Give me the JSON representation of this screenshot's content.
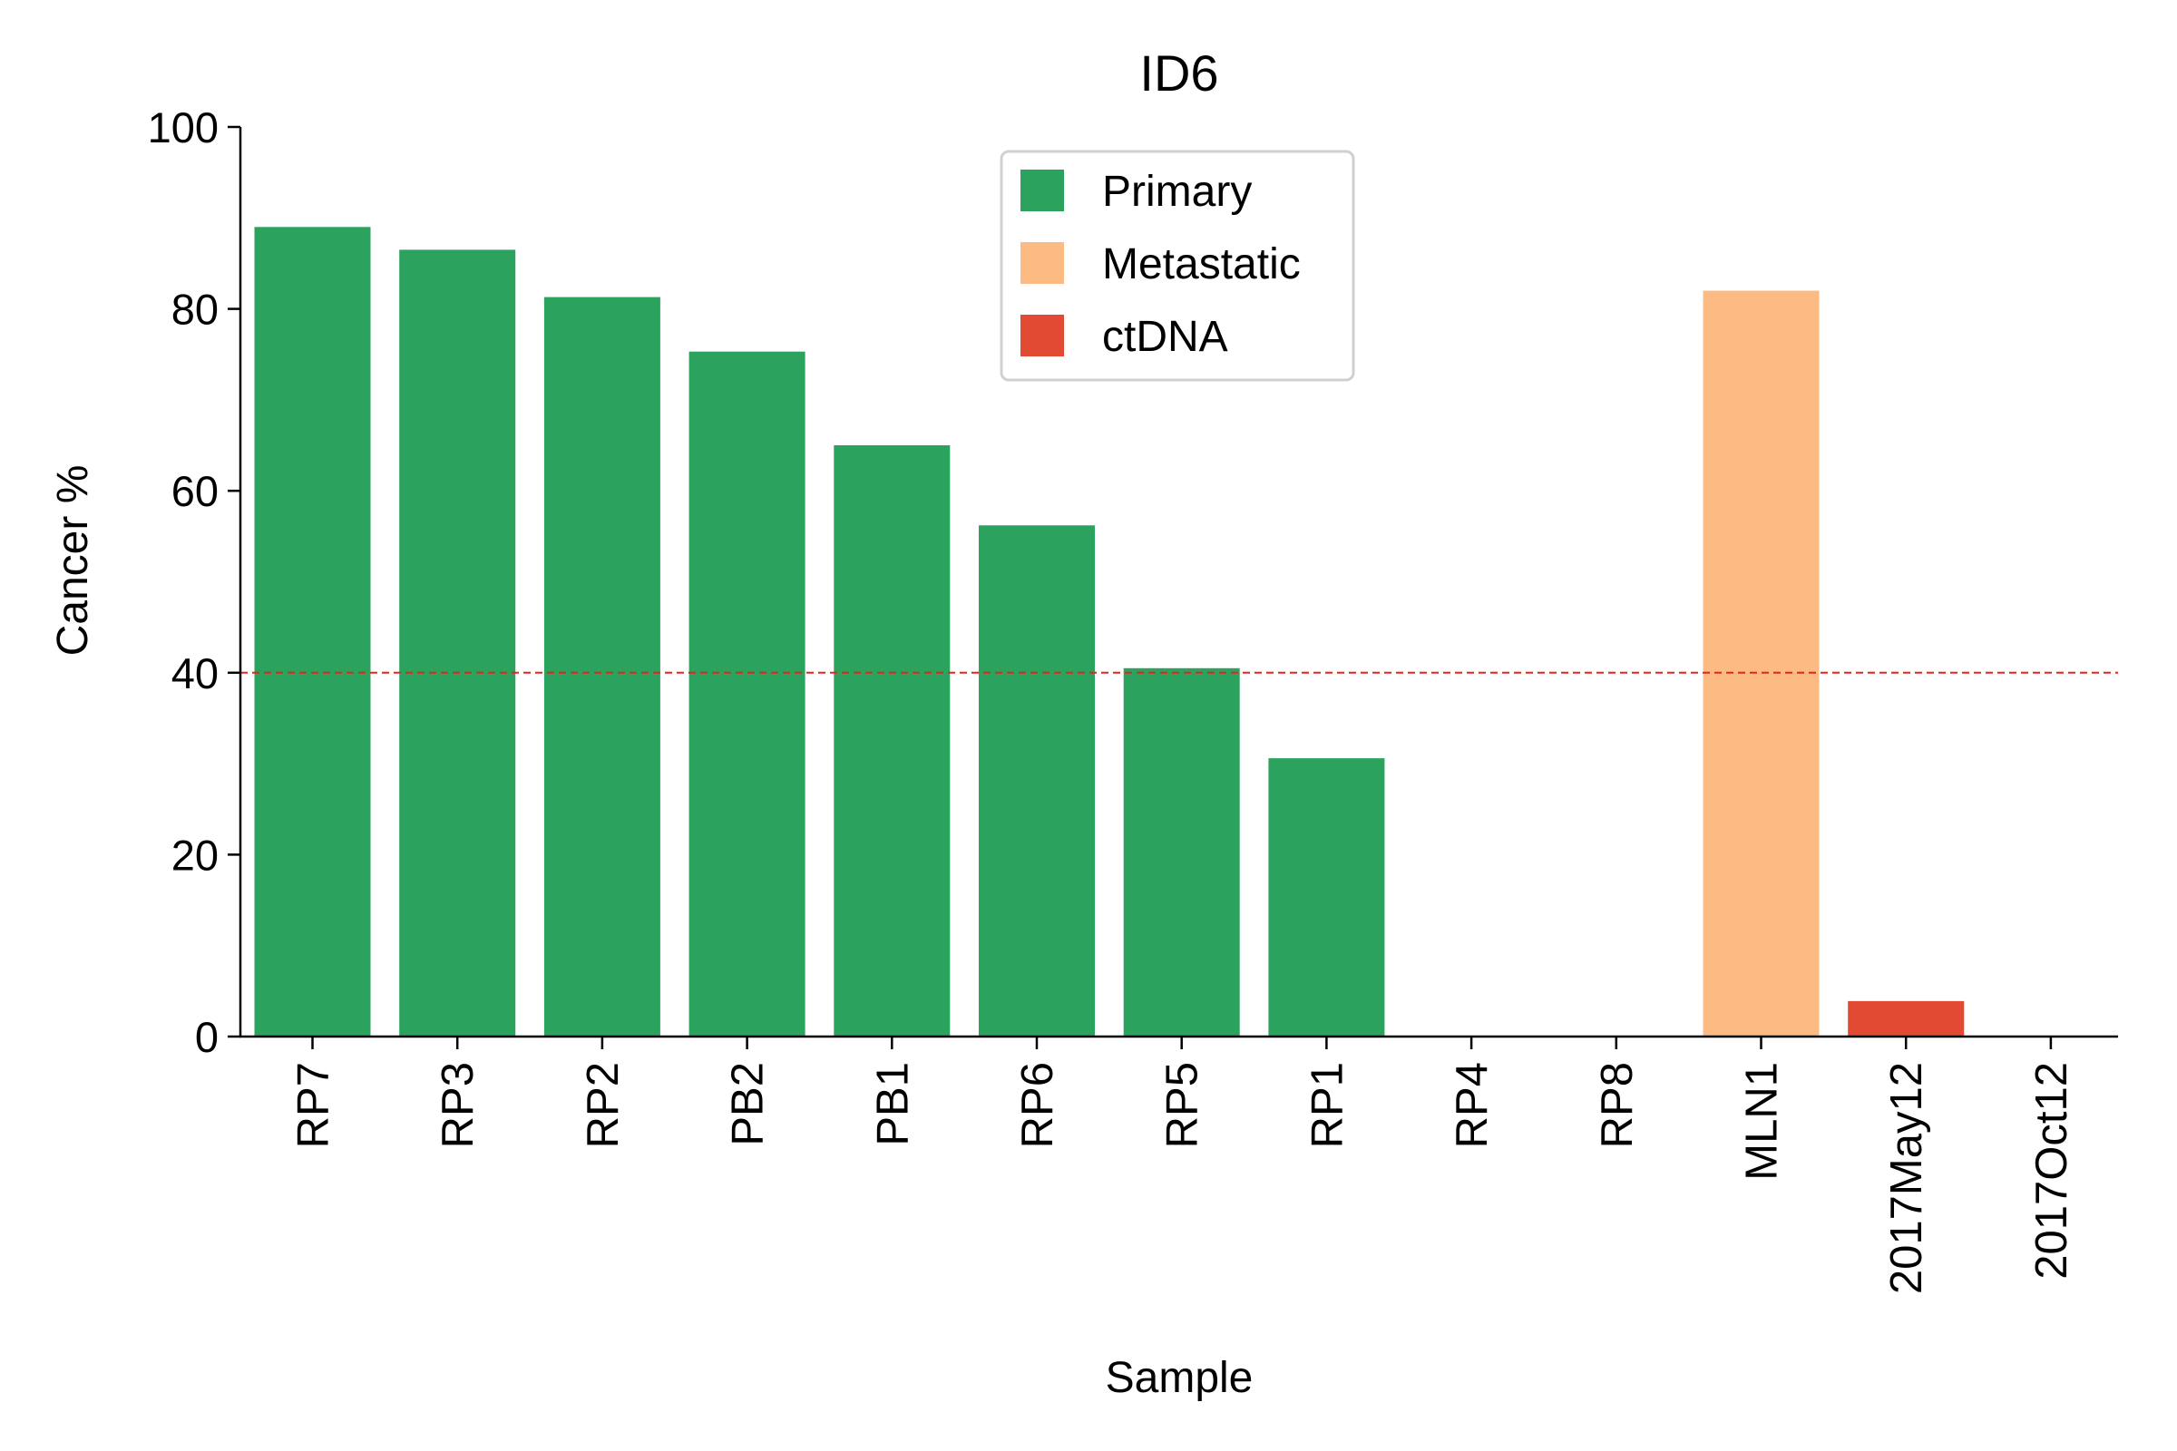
{
  "chart_data": {
    "type": "bar",
    "title": "ID6",
    "xlabel": "Sample",
    "ylabel": "Cancer %",
    "ylim": [
      0,
      100
    ],
    "yticks": [
      0,
      20,
      40,
      60,
      80,
      100
    ],
    "categories": [
      "RP7",
      "RP3",
      "RP2",
      "PB2",
      "PB1",
      "RP6",
      "RP5",
      "RP1",
      "RP4",
      "RP8",
      "MLN1",
      "2017May12",
      "2017Oct12"
    ],
    "values": [
      89,
      86.5,
      81.3,
      75.3,
      65,
      56.2,
      40.5,
      30.6,
      0,
      0,
      82,
      3.9,
      0
    ],
    "groups": [
      "Primary",
      "Primary",
      "Primary",
      "Primary",
      "Primary",
      "Primary",
      "Primary",
      "Primary",
      "Primary",
      "Primary",
      "Metastatic",
      "ctDNA",
      "ctDNA"
    ],
    "threshold_line": {
      "value": 40,
      "style": "dashed",
      "color": "#e8221e"
    },
    "legend": {
      "placement": "top-center",
      "entries": [
        {
          "label": "Primary",
          "color": "#2ca25f"
        },
        {
          "label": "Metastatic",
          "color": "#fdbb84"
        },
        {
          "label": "ctDNA",
          "color": "#e34a33"
        }
      ]
    },
    "grid": false
  }
}
